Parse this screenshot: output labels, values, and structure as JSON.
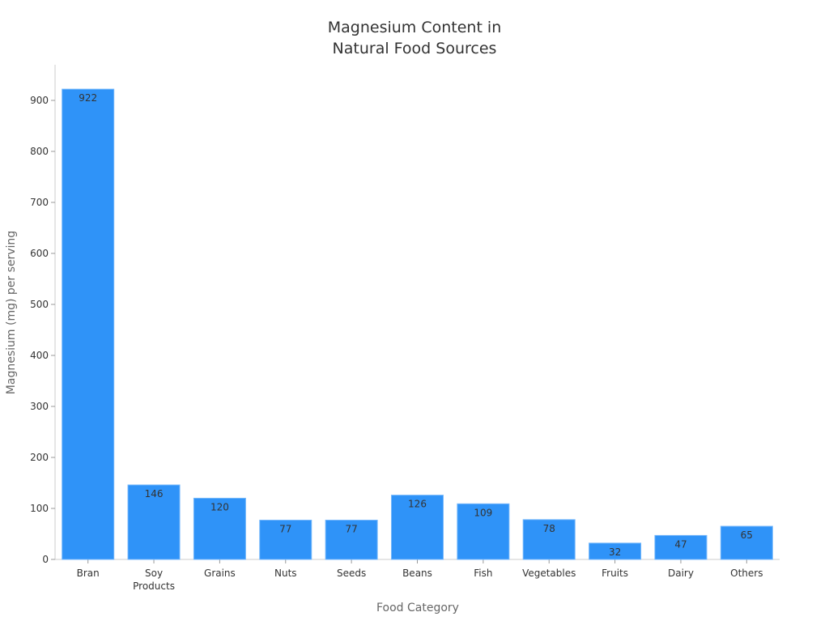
{
  "chart_data": {
    "type": "bar",
    "title": "Magnesium Content in\nNatural Food Sources",
    "xlabel": "Food Category",
    "ylabel": "Magnesium (mg) per serving",
    "categories": [
      "Bran",
      "Soy\nProducts",
      "Grains",
      "Nuts",
      "Seeds",
      "Beans",
      "Fish",
      "Vegetables",
      "Fruits",
      "Dairy",
      "Others"
    ],
    "values": [
      922,
      146,
      120,
      77,
      77,
      126,
      109,
      78,
      32,
      47,
      65
    ],
    "ylim": [
      0,
      970
    ],
    "yticks": [
      0,
      100,
      200,
      300,
      400,
      500,
      600,
      700,
      800,
      900
    ],
    "grid": false,
    "bar_color": "#2f93f8",
    "bar_edge_color": "#74b7fb"
  }
}
